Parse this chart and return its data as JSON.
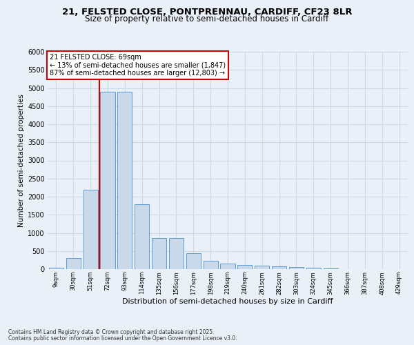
{
  "title1": "21, FELSTED CLOSE, PONTPRENNAU, CARDIFF, CF23 8LR",
  "title2": "Size of property relative to semi-detached houses in Cardiff",
  "xlabel": "Distribution of semi-detached houses by size in Cardiff",
  "ylabel": "Number of semi-detached properties",
  "footer1": "Contains HM Land Registry data © Crown copyright and database right 2025.",
  "footer2": "Contains public sector information licensed under the Open Government Licence v3.0.",
  "annotation_title": "21 FELSTED CLOSE: 69sqm",
  "annotation_line1": "← 13% of semi-detached houses are smaller (1,847)",
  "annotation_line2": "87% of semi-detached houses are larger (12,803) →",
  "bar_color": "#c9d9ea",
  "bar_edge_color": "#5b9bd5",
  "grid_color": "#d0d8e4",
  "vline_color": "#cc0000",
  "background_color": "#eaf0f8",
  "tick_labels": [
    "9sqm",
    "30sqm",
    "51sqm",
    "72sqm",
    "93sqm",
    "114sqm",
    "135sqm",
    "156sqm",
    "177sqm",
    "198sqm",
    "219sqm",
    "240sqm",
    "261sqm",
    "282sqm",
    "303sqm",
    "324sqm",
    "345sqm",
    "366sqm",
    "387sqm",
    "408sqm",
    "429sqm"
  ],
  "values": [
    30,
    300,
    2200,
    4900,
    4900,
    1800,
    850,
    850,
    430,
    220,
    160,
    120,
    100,
    80,
    60,
    30,
    10,
    5,
    3,
    2,
    0
  ],
  "vline_x_index": 3,
  "ylim": [
    0,
    6000
  ],
  "yticks": [
    0,
    500,
    1000,
    1500,
    2000,
    2500,
    3000,
    3500,
    4000,
    4500,
    5000,
    5500,
    6000
  ]
}
